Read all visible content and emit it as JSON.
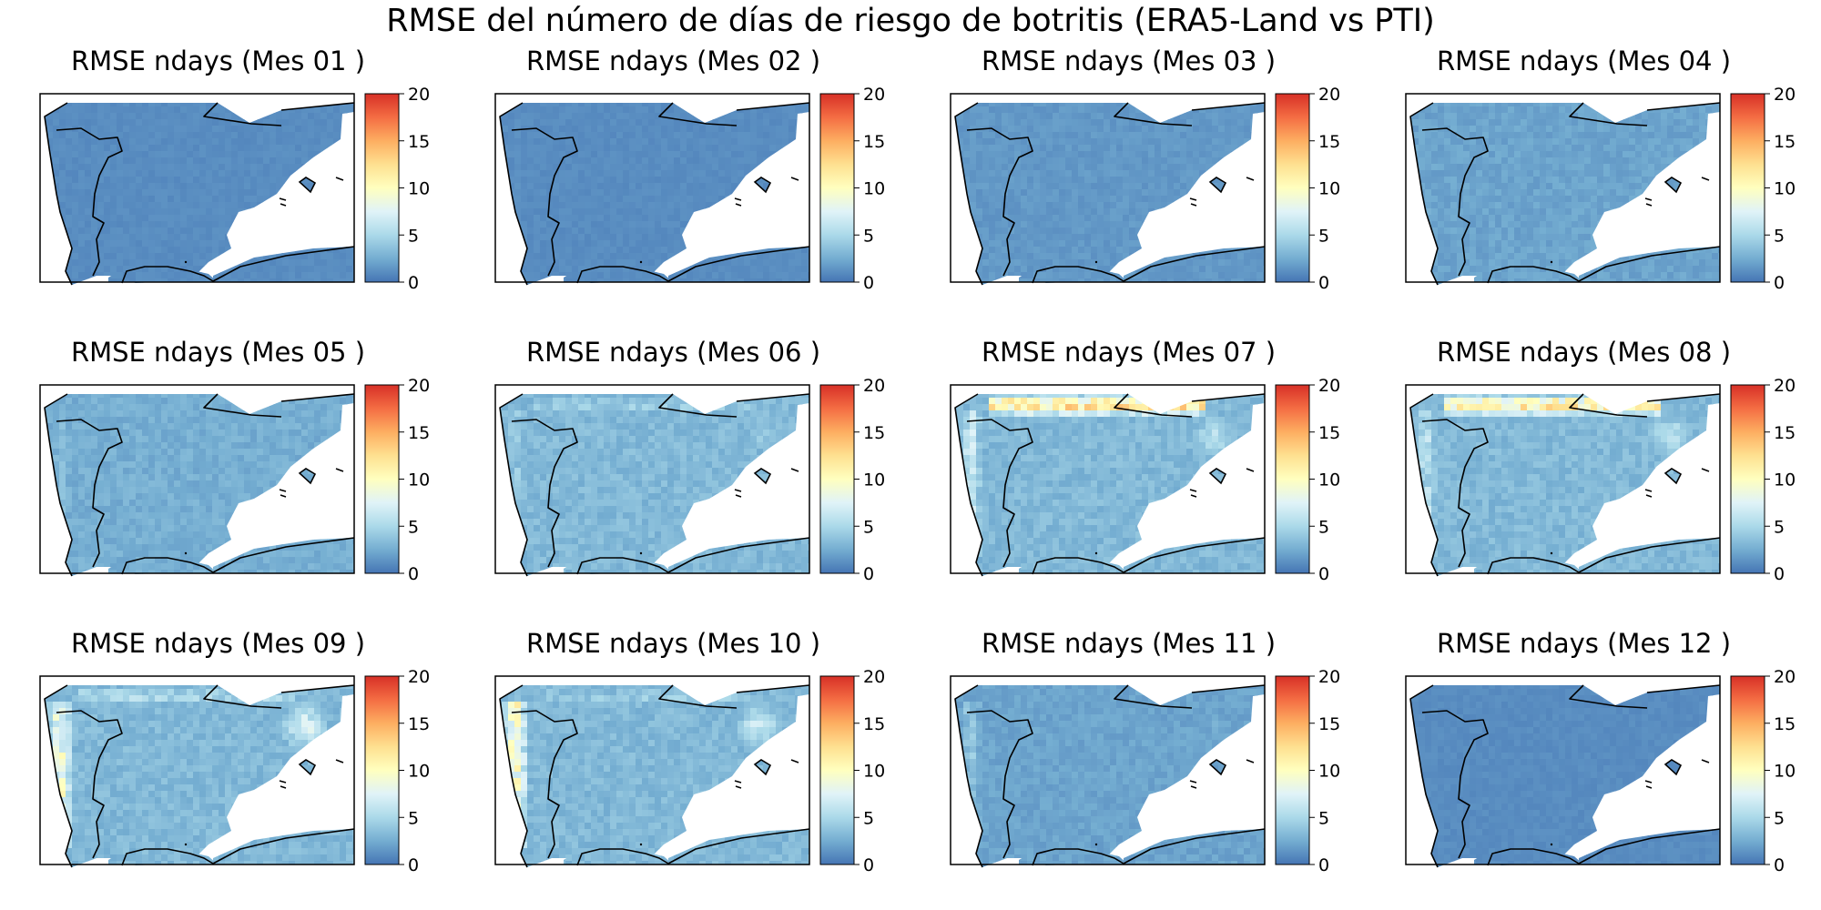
{
  "figure": {
    "title": "RMSE del número de días de riesgo de botritis (ERA5-Land vs PTI)"
  },
  "colorbar": {
    "ticks": [
      0,
      5,
      10,
      15,
      20
    ],
    "range": [
      0,
      20
    ],
    "colormap": "RdYlBu_r",
    "stops": [
      "#4575b4",
      "#74add1",
      "#abd9e9",
      "#e0f3f8",
      "#ffffbf",
      "#fee090",
      "#fdae61",
      "#f46d43",
      "#d73027"
    ]
  },
  "colors": {
    "land_base": "#4a7ab8",
    "frame": "#000000",
    "border": "#000000"
  },
  "chart_data": [
    {
      "type": "heatmap",
      "title": "RMSE ndays (Mes 01 )",
      "month": "01",
      "clim": [
        0,
        20
      ],
      "typical_rmse": 1,
      "north_coast_rmse": 1,
      "west_coast_rmse": 1,
      "northeast_rmse": 1
    },
    {
      "type": "heatmap",
      "title": "RMSE ndays (Mes 02 )",
      "month": "02",
      "clim": [
        0,
        20
      ],
      "typical_rmse": 1,
      "north_coast_rmse": 1,
      "west_coast_rmse": 1.5,
      "northeast_rmse": 1
    },
    {
      "type": "heatmap",
      "title": "RMSE ndays (Mes 03 )",
      "month": "03",
      "clim": [
        0,
        20
      ],
      "typical_rmse": 1.5,
      "north_coast_rmse": 1.5,
      "west_coast_rmse": 2,
      "northeast_rmse": 1.5
    },
    {
      "type": "heatmap",
      "title": "RMSE ndays (Mes 04 )",
      "month": "04",
      "clim": [
        0,
        20
      ],
      "typical_rmse": 2,
      "north_coast_rmse": 2,
      "west_coast_rmse": 3,
      "northeast_rmse": 2.5
    },
    {
      "type": "heatmap",
      "title": "RMSE ndays (Mes 05 )",
      "month": "05",
      "clim": [
        0,
        20
      ],
      "typical_rmse": 2.5,
      "north_coast_rmse": 3,
      "west_coast_rmse": 4,
      "northeast_rmse": 3
    },
    {
      "type": "heatmap",
      "title": "RMSE ndays (Mes 06 )",
      "month": "06",
      "clim": [
        0,
        20
      ],
      "typical_rmse": 3,
      "north_coast_rmse": 5,
      "west_coast_rmse": 5,
      "northeast_rmse": 5
    },
    {
      "type": "heatmap",
      "title": "RMSE ndays (Mes 07 )",
      "month": "07",
      "clim": [
        0,
        20
      ],
      "typical_rmse": 3,
      "north_coast_rmse": 14,
      "west_coast_rmse": 8,
      "northeast_rmse": 7
    },
    {
      "type": "heatmap",
      "title": "RMSE ndays (Mes 08 )",
      "month": "08",
      "clim": [
        0,
        20
      ],
      "typical_rmse": 3,
      "north_coast_rmse": 13,
      "west_coast_rmse": 7,
      "northeast_rmse": 7
    },
    {
      "type": "heatmap",
      "title": "RMSE ndays (Mes 09 )",
      "month": "09",
      "clim": [
        0,
        20
      ],
      "typical_rmse": 3,
      "north_coast_rmse": 6,
      "west_coast_rmse": 11,
      "northeast_rmse": 9
    },
    {
      "type": "heatmap",
      "title": "RMSE ndays (Mes 10 )",
      "month": "10",
      "clim": [
        0,
        20
      ],
      "typical_rmse": 3,
      "north_coast_rmse": 5,
      "west_coast_rmse": 12,
      "northeast_rmse": 8
    },
    {
      "type": "heatmap",
      "title": "RMSE ndays (Mes 11 )",
      "month": "11",
      "clim": [
        0,
        20
      ],
      "typical_rmse": 2,
      "north_coast_rmse": 2,
      "west_coast_rmse": 5,
      "northeast_rmse": 3
    },
    {
      "type": "heatmap",
      "title": "RMSE ndays (Mes 12 )",
      "month": "12",
      "clim": [
        0,
        20
      ],
      "typical_rmse": 1,
      "north_coast_rmse": 1,
      "west_coast_rmse": 1,
      "northeast_rmse": 1
    }
  ]
}
